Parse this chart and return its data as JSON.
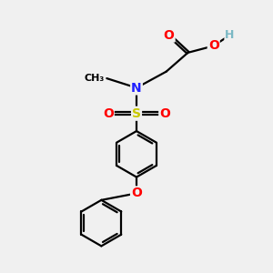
{
  "background_color": "#f0f0f0",
  "atom_colors": {
    "C": "#000000",
    "H": "#7ab8c4",
    "N": "#2020ff",
    "O": "#ff0000",
    "S": "#c8c800"
  },
  "bond_color": "#000000",
  "bond_width": 1.6,
  "font_size_atoms": 10,
  "figsize": [
    3.0,
    3.0
  ],
  "dpi": 100
}
